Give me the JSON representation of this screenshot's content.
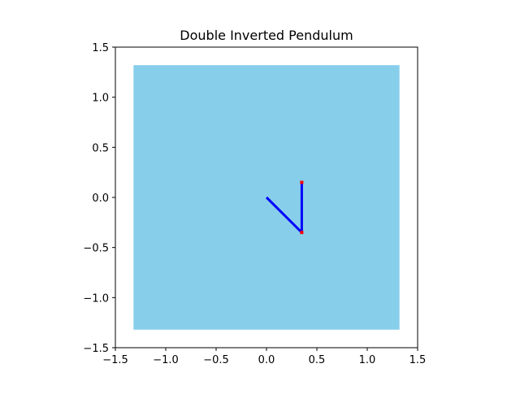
{
  "chart_data": {
    "type": "line",
    "title": "Double Inverted Pendulum",
    "xlabel": "",
    "ylabel": "",
    "xlim": [
      -1.5,
      1.5
    ],
    "ylim": [
      -1.5,
      1.5
    ],
    "xticks": [
      -1.5,
      -1.0,
      -0.5,
      0.0,
      0.5,
      1.0,
      1.5
    ],
    "xtick_labels": [
      "−1.5",
      "−1.0",
      "−0.5",
      "0.0",
      "0.5",
      "1.0",
      "1.5"
    ],
    "yticks": [
      -1.5,
      -1.0,
      -0.5,
      0.0,
      0.5,
      1.0,
      1.5
    ],
    "ytick_labels": [
      "−1.5",
      "−1.0",
      "−0.5",
      "0.0",
      "0.5",
      "1.0",
      "1.5"
    ],
    "grid": false,
    "legend": "none",
    "background_region": {
      "x": [
        -1.32,
        1.32
      ],
      "y": [
        -1.32,
        1.32
      ],
      "color": "#87CEEB"
    },
    "series": [
      {
        "points": [
          [
            0.0,
            0.0
          ],
          [
            0.35,
            -0.35
          ],
          [
            0.35,
            0.15
          ]
        ],
        "color": "#0000FF"
      }
    ],
    "joints": {
      "points": [
        [
          0.35,
          -0.35
        ],
        [
          0.35,
          0.15
        ]
      ],
      "color": "#FF0000"
    }
  }
}
